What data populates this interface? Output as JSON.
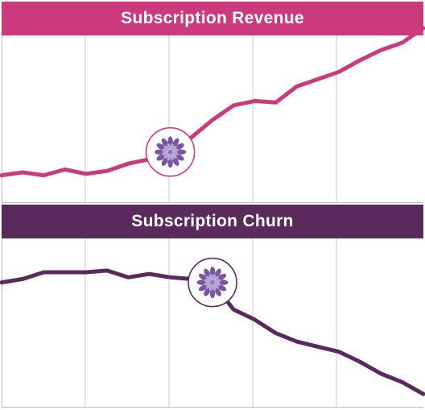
{
  "colors": {
    "revenue": "#cc3a7e",
    "churn": "#5a2a5c",
    "grid": "#c9c9c9",
    "axis": "#bdbdbd",
    "marker_outer": "#7a55a0",
    "marker_inner": "#b7a3d3",
    "marker_center": "#8a75b5"
  },
  "icons": {
    "marker": "flower-icon"
  },
  "chart_data": [
    {
      "type": "line",
      "title": "Subscription Revenue",
      "x": [
        0,
        1,
        2,
        3,
        4,
        5,
        6,
        7,
        8,
        9,
        10,
        11,
        12,
        13,
        14,
        15,
        16,
        17,
        18,
        19,
        20
      ],
      "series": [
        {
          "values": [
            9,
            11,
            9,
            13,
            10,
            12,
            17,
            20,
            25,
            35,
            47,
            57,
            60,
            59,
            70,
            75,
            80,
            88,
            95,
            100,
            110
          ]
        }
      ],
      "xlim": [
        0,
        20
      ],
      "ylim": [
        -10,
        105
      ],
      "marker_index": 8,
      "grid": true
    },
    {
      "type": "line",
      "title": "Subscription Churn",
      "x": [
        0,
        1,
        2,
        3,
        4,
        5,
        6,
        7,
        8,
        9,
        10,
        11,
        12,
        13,
        14,
        15,
        16,
        17,
        18,
        19,
        20
      ],
      "series": [
        {
          "values": [
            74,
            76,
            80,
            80,
            80,
            81,
            77,
            79,
            77,
            76,
            74,
            58,
            52,
            44,
            39,
            36,
            33,
            27,
            20,
            15,
            8
          ]
        }
      ],
      "xlim": [
        0,
        20
      ],
      "ylim": [
        0,
        100
      ],
      "marker_index": 10,
      "grid": true
    }
  ]
}
